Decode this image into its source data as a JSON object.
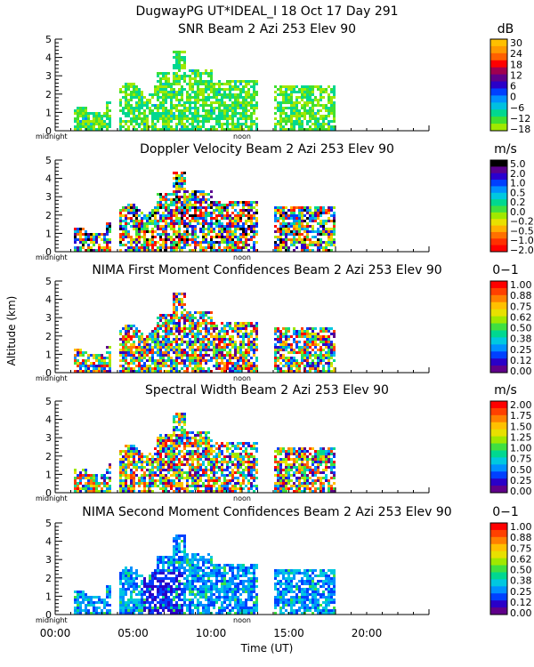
{
  "header": {
    "title": "DugwayPG UT*IDEAL_I  18 Oct 17 Day 291"
  },
  "axes": {
    "ylabel": "Altitude (km)",
    "xlabel": "Time (UT)",
    "marker_left": "midnight",
    "marker_mid": "noon",
    "yticks": [
      "0",
      "1",
      "2",
      "3",
      "4",
      "5"
    ],
    "xticks": [
      "00:00",
      "05:00",
      "10:00",
      "15:00",
      "20:00"
    ]
  },
  "chart_data": [
    {
      "type": "heatmap",
      "title": "SNR Beam 2 Azi 253 Elev 90",
      "unit": "dB",
      "colorbar_ticks": [
        "30",
        "24",
        "18",
        "12",
        "6",
        "0",
        "−6",
        "−12",
        "−18"
      ],
      "palette": [
        "#ffc000",
        "#ff9900",
        "#ff6000",
        "#ff0000",
        "#a00050",
        "#60008a",
        "#2a00c8",
        "#0040ff",
        "#0090ff",
        "#00c0e0",
        "#00d890",
        "#40e030",
        "#a0e800"
      ],
      "x_range_hours": [
        0,
        24
      ],
      "y_range_km": [
        0,
        5
      ]
    },
    {
      "type": "heatmap",
      "title": "Doppler Velocity Beam 2 Azi 253 Elev 90",
      "unit": "m/s",
      "colorbar_ticks": [
        "5.0",
        "2.0",
        "1.0",
        "0.5",
        "0.2",
        "0.0",
        "−0.2",
        "−0.5",
        "−1.0",
        "−2.0"
      ],
      "palette": [
        "#000000",
        "#5a0090",
        "#2a00d0",
        "#0040ff",
        "#0090ff",
        "#00c8e0",
        "#00d890",
        "#40e040",
        "#a0e800",
        "#e8e000",
        "#ffb000",
        "#ff7000",
        "#ff3000",
        "#ff0000"
      ],
      "x_range_hours": [
        0,
        24
      ],
      "y_range_km": [
        0,
        5
      ]
    },
    {
      "type": "heatmap",
      "title": "NIMA First Moment Confidences Beam 2 Azi 253 Elev 90",
      "unit": "0−1",
      "colorbar_ticks": [
        "1.00",
        "0.88",
        "0.75",
        "0.62",
        "0.50",
        "0.38",
        "0.25",
        "0.12",
        "0.00"
      ],
      "palette": [
        "#ff0000",
        "#ff4000",
        "#ff8000",
        "#ffc000",
        "#e8e000",
        "#a0e800",
        "#40e040",
        "#00d890",
        "#00c8e0",
        "#0090ff",
        "#0040ff",
        "#2a00c8",
        "#60008a"
      ],
      "x_range_hours": [
        0,
        24
      ],
      "y_range_km": [
        0,
        5
      ]
    },
    {
      "type": "heatmap",
      "title": "Spectral Width Beam 2 Azi 253 Elev 90",
      "unit": "m/s",
      "colorbar_ticks": [
        "2.00",
        "1.75",
        "1.50",
        "1.25",
        "1.00",
        "0.75",
        "0.50",
        "0.25",
        "0.00"
      ],
      "palette": [
        "#ff0000",
        "#ff4000",
        "#ff8000",
        "#ffc000",
        "#e8e000",
        "#a0e800",
        "#40e040",
        "#00d890",
        "#00c8e0",
        "#0090ff",
        "#0040ff",
        "#2a00c8",
        "#60008a"
      ],
      "x_range_hours": [
        0,
        24
      ],
      "y_range_km": [
        0,
        5
      ]
    },
    {
      "type": "heatmap",
      "title": "NIMA Second Moment Confidences Beam 2 Azi 253 Elev 90",
      "unit": "0−1",
      "colorbar_ticks": [
        "1.00",
        "0.88",
        "0.75",
        "0.62",
        "0.50",
        "0.38",
        "0.25",
        "0.12",
        "0.00"
      ],
      "palette": [
        "#ff0000",
        "#ff4000",
        "#ff8000",
        "#ffc000",
        "#e8e000",
        "#a0e800",
        "#40e040",
        "#00d890",
        "#00c8e0",
        "#0090ff",
        "#0040ff",
        "#2a00c8",
        "#60008a"
      ],
      "x_range_hours": [
        0,
        24
      ],
      "y_range_km": [
        0,
        5
      ]
    }
  ]
}
